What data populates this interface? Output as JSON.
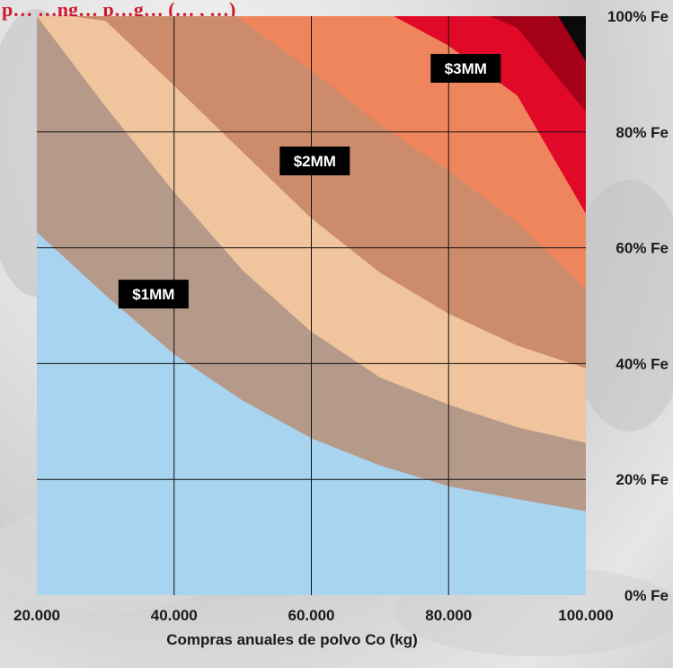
{
  "chart_data": {
    "type": "area",
    "title": "p… …ng… p…g… (… , …)",
    "xlabel": "Compras anuales de polvo Co (kg)",
    "ylabel": "",
    "xlim": [
      20000,
      100000
    ],
    "ylim": [
      0,
      100
    ],
    "x_ticks": [
      {
        "value": 20000,
        "label": "20.000"
      },
      {
        "value": 40000,
        "label": "40.000"
      },
      {
        "value": 60000,
        "label": "60.000"
      },
      {
        "value": 80000,
        "label": "80.000"
      },
      {
        "value": 100000,
        "label": "100.000"
      }
    ],
    "y_ticks": [
      {
        "value": 0,
        "label": "0% Fe"
      },
      {
        "value": 20,
        "label": "20% Fe"
      },
      {
        "value": 40,
        "label": "40% Fe"
      },
      {
        "value": 60,
        "label": "60% Fe"
      },
      {
        "value": 80,
        "label": "80% Fe"
      },
      {
        "value": 100,
        "label": "100% Fe"
      }
    ],
    "grid": true,
    "y_axis_side": "right",
    "series": [
      {
        "color": "#a8d4ef",
        "level": 0
      },
      {
        "color": "#b59a8a",
        "level": 1,
        "x": [
          20000,
          30000,
          40000,
          50000,
          60000,
          70000,
          80000,
          90000,
          100000
        ],
        "y": [
          62.7,
          51.8,
          41.6,
          33.6,
          27.1,
          22.4,
          18.8,
          16.6,
          14.5
        ]
      },
      {
        "color": "#f0c49c",
        "level": 2,
        "x": [
          20000,
          30000,
          40000,
          50000,
          60000,
          70000,
          80000,
          90000,
          100000
        ],
        "y": [
          100,
          84.4,
          69.6,
          56.1,
          45.5,
          37.6,
          32.9,
          29.0,
          26.3
        ]
      },
      {
        "color": "#cc8c6c",
        "level": 3,
        "x": [
          25000,
          30000,
          40000,
          50000,
          60000,
          70000,
          80000,
          90000,
          100000
        ],
        "y": [
          100,
          99.2,
          88.0,
          76.5,
          65.1,
          55.7,
          48.6,
          43.1,
          39.2
        ]
      },
      {
        "color": "#ef855c",
        "level": 4,
        "x": [
          49000,
          60000,
          70000,
          80000,
          90000,
          100000
        ],
        "y": [
          100,
          90.6,
          81.2,
          73.3,
          64.3,
          52.9
        ]
      },
      {
        "color": "#e00928",
        "level": 5,
        "x": [
          72000,
          80000,
          90000,
          100000
        ],
        "y": [
          100,
          94.9,
          86.3,
          65.9
        ]
      },
      {
        "color": "#a40018",
        "level": 6,
        "x": [
          86000,
          90000,
          100000
        ],
        "y": [
          100,
          98.0,
          83.5
        ]
      },
      {
        "color": "#0a0a0a",
        "level": 7,
        "x": [
          96000,
          100000
        ],
        "y": [
          100,
          92.2
        ]
      }
    ],
    "annotations": [
      {
        "text": "$1MM",
        "x": 37000,
        "y": 52
      },
      {
        "text": "$2MM",
        "x": 60500,
        "y": 75
      },
      {
        "text": "$3MM",
        "x": 82500,
        "y": 91
      }
    ]
  }
}
